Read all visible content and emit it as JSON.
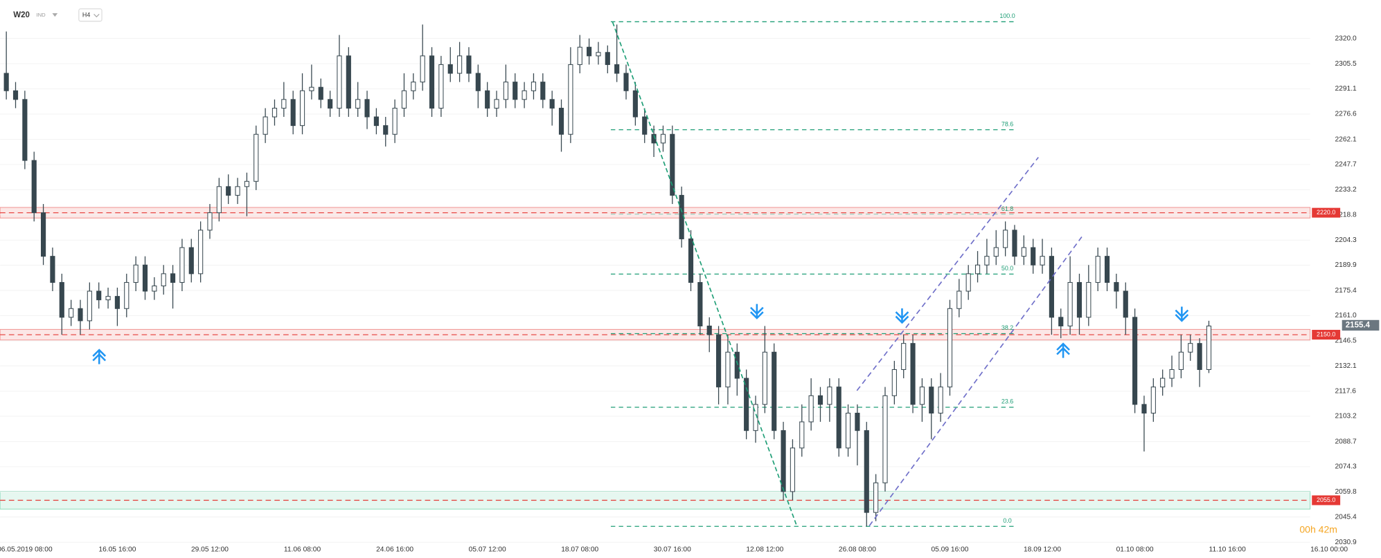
{
  "chart_data": {
    "type": "candlestick",
    "header": {
      "symbol": "W20",
      "market": "IND",
      "interval": "H4"
    },
    "timer": "00h 42m",
    "up_color": "#ffffff",
    "down_color": "#37474f",
    "categories": [
      null,
      null,
      "06.05.2019 08:00",
      null,
      null,
      null,
      null,
      null,
      null,
      null,
      null,
      null,
      "16.05 16:00",
      null,
      null,
      null,
      null,
      null,
      null,
      null,
      null,
      null,
      "29.05 12:00",
      null,
      null,
      null,
      null,
      null,
      null,
      null,
      null,
      null,
      "11.06 08:00",
      null,
      null,
      null,
      null,
      null,
      null,
      null,
      null,
      null,
      "24.06 16:00",
      null,
      null,
      null,
      null,
      null,
      null,
      null,
      null,
      null,
      "05.07 12:00",
      null,
      null,
      null,
      null,
      null,
      null,
      null,
      null,
      null,
      "18.07 08:00",
      null,
      null,
      null,
      null,
      null,
      null,
      null,
      null,
      null,
      "30.07 16:00",
      null,
      null,
      null,
      null,
      null,
      null,
      null,
      null,
      null,
      "12.08 12:00",
      null,
      null,
      null,
      null,
      null,
      null,
      null,
      null,
      null,
      "26.08 08:00",
      null,
      null,
      null,
      null,
      null,
      null,
      null,
      null,
      null,
      "05.09 16:00",
      null,
      null,
      null,
      null,
      null,
      null,
      null,
      null,
      null,
      "18.09 12:00",
      null,
      null,
      null,
      null,
      null,
      null,
      null,
      null,
      null,
      "01.10 08:00",
      null,
      null,
      null,
      null,
      null,
      null,
      null,
      null,
      null,
      "11.10 16:00",
      null,
      null,
      null,
      null,
      null,
      null,
      null,
      null,
      null,
      null,
      "16.10 00:00"
    ],
    "open": [
      2300,
      2290,
      2285,
      2250,
      2220,
      2195,
      2180,
      2160,
      2165,
      2158,
      2175,
      2170,
      2172,
      2165,
      2180,
      2190,
      2175,
      2178,
      2185,
      2180,
      2200,
      2185,
      2210,
      2220,
      2235,
      2230,
      2235,
      2238,
      2265,
      2275,
      2280,
      2285,
      2270,
      2290,
      2292,
      2285,
      2280,
      2310,
      2280,
      2285,
      2275,
      2270,
      2265,
      2280,
      2290,
      2295,
      2310,
      2280,
      2305,
      2300,
      2310,
      2300,
      2290,
      2280,
      2285,
      2295,
      2285,
      2290,
      2295,
      2285,
      2280,
      2265,
      2305,
      2315,
      2310,
      2312,
      2305,
      2300,
      2290,
      2275,
      2265,
      2260,
      2265,
      2230,
      2205,
      2180,
      2155,
      2150,
      2120,
      2140,
      2125,
      2095,
      2110,
      2140,
      2095,
      2060,
      2085,
      2100,
      2115,
      2110,
      2120,
      2085,
      2105,
      2095,
      2048,
      2065,
      2115,
      2130,
      2145,
      2110,
      2120,
      2105,
      2120,
      2165,
      2175,
      2185,
      2190,
      2195,
      2200,
      2210,
      2195,
      2200,
      2190,
      2195,
      2160,
      2155,
      2180,
      2160,
      2180,
      2195,
      2180,
      2175,
      2160,
      2110,
      2105,
      2120,
      2125,
      2130,
      2140,
      2145,
      2130,
      null,
      null,
      null,
      null,
      null,
      null,
      null,
      null,
      null,
      null,
      null,
      null,
      null
    ],
    "high": [
      2324,
      2295,
      2290,
      2255,
      2225,
      2200,
      2185,
      2170,
      2170,
      2180,
      2180,
      2177,
      2177,
      2185,
      2195,
      2195,
      2183,
      2190,
      2190,
      2205,
      2205,
      2215,
      2225,
      2240,
      2242,
      2240,
      2243,
      2270,
      2280,
      2285,
      2295,
      2290,
      2300,
      2305,
      2297,
      2290,
      2322,
      2315,
      2295,
      2290,
      2280,
      2275,
      2285,
      2300,
      2300,
      2328,
      2315,
      2310,
      2315,
      2318,
      2315,
      2305,
      2295,
      2290,
      2305,
      2300,
      2295,
      2300,
      2300,
      2290,
      2285,
      2315,
      2322,
      2320,
      2318,
      2316,
      2328,
      2305,
      2295,
      2280,
      2270,
      2270,
      2270,
      2235,
      2210,
      2185,
      2160,
      2155,
      2150,
      2145,
      2130,
      2115,
      2155,
      2145,
      2100,
      2090,
      2110,
      2125,
      2120,
      2125,
      2125,
      2110,
      2110,
      2100,
      2070,
      2120,
      2135,
      2150,
      2150,
      2125,
      2125,
      2128,
      2170,
      2182,
      2190,
      2198,
      2205,
      2210,
      2215,
      2213,
      2207,
      2205,
      2205,
      2200,
      2165,
      2195,
      2185,
      2190,
      2200,
      2200,
      2185,
      2180,
      2165,
      2115,
      2125,
      2130,
      2138,
      2150,
      2150,
      2148,
      2158,
      null,
      null,
      null,
      null,
      null,
      null,
      null,
      null,
      null,
      null,
      null,
      null,
      null
    ],
    "low": [
      2285,
      2280,
      2245,
      2215,
      2190,
      2175,
      2150,
      2155,
      2150,
      2153,
      2165,
      2165,
      2155,
      2160,
      2175,
      2170,
      2170,
      2173,
      2165,
      2175,
      2180,
      2180,
      2205,
      2215,
      2225,
      2225,
      2218,
      2233,
      2260,
      2270,
      2275,
      2265,
      2265,
      2285,
      2280,
      2275,
      2275,
      2275,
      2275,
      2268,
      2265,
      2258,
      2260,
      2275,
      2285,
      2290,
      2275,
      2275,
      2295,
      2295,
      2295,
      2280,
      2275,
      2275,
      2280,
      2280,
      2280,
      2285,
      2280,
      2270,
      2255,
      2260,
      2300,
      2305,
      2305,
      2300,
      2295,
      2285,
      2270,
      2260,
      2252,
      2255,
      2225,
      2200,
      2175,
      2150,
      2140,
      2110,
      2110,
      2115,
      2090,
      2088,
      2105,
      2090,
      2055,
      2055,
      2080,
      2095,
      2100,
      2100,
      2080,
      2080,
      2075,
      2040,
      2043,
      2060,
      2110,
      2125,
      2105,
      2100,
      2090,
      2100,
      2115,
      2160,
      2170,
      2180,
      2185,
      2190,
      2195,
      2190,
      2190,
      2185,
      2185,
      2150,
      2148,
      2150,
      2150,
      2155,
      2175,
      2175,
      2165,
      2150,
      2105,
      2083,
      2100,
      2115,
      2120,
      2125,
      2135,
      2120,
      2128,
      null,
      null,
      null,
      null,
      null,
      null,
      null,
      null,
      null,
      null,
      null,
      null,
      null
    ],
    "close": [
      2290,
      2285,
      2250,
      2220,
      2195,
      2180,
      2160,
      2165,
      2158,
      2175,
      2170,
      2172,
      2165,
      2180,
      2190,
      2175,
      2178,
      2185,
      2180,
      2200,
      2185,
      2210,
      2220,
      2235,
      2230,
      2235,
      2238,
      2265,
      2275,
      2280,
      2285,
      2270,
      2290,
      2292,
      2285,
      2280,
      2310,
      2280,
      2285,
      2275,
      2270,
      2265,
      2280,
      2290,
      2295,
      2310,
      2280,
      2305,
      2300,
      2310,
      2300,
      2290,
      2280,
      2285,
      2295,
      2285,
      2290,
      2295,
      2285,
      2280,
      2265,
      2305,
      2315,
      2310,
      2312,
      2305,
      2300,
      2290,
      2275,
      2265,
      2260,
      2265,
      2230,
      2205,
      2180,
      2155,
      2150,
      2120,
      2140,
      2125,
      2095,
      2110,
      2140,
      2095,
      2060,
      2085,
      2100,
      2115,
      2110,
      2120,
      2085,
      2105,
      2095,
      2048,
      2065,
      2115,
      2130,
      2145,
      2110,
      2120,
      2105,
      2120,
      2165,
      2175,
      2185,
      2190,
      2195,
      2200,
      2210,
      2195,
      2200,
      2190,
      2195,
      2160,
      2155,
      2180,
      2160,
      2180,
      2195,
      2180,
      2175,
      2160,
      2110,
      2105,
      2120,
      2125,
      2130,
      2140,
      2145,
      2130,
      2155,
      null,
      null,
      null,
      null,
      null,
      null,
      null,
      null,
      null,
      null,
      null,
      null,
      null
    ],
    "ylim": [
      2028,
      2337
    ],
    "yticks": [
      {
        "value": 2320.0,
        "label": "2320.0"
      },
      2305.5,
      2291.1,
      2276.6,
      2262.1,
      2247.7,
      2233.2,
      2218.8,
      2204.3,
      2189.9,
      2175.4,
      {
        "value": 2161.0,
        "label": "2161.0"
      },
      2146.5,
      2132.1,
      2117.6,
      2103.2,
      2088.7,
      2074.3,
      2059.8,
      2045.4,
      2030.9
    ],
    "levels": [
      {
        "value": 2220,
        "label": "2220.0",
        "color": "#e53935"
      },
      {
        "value": 2150,
        "label": "2150.0",
        "color": "#e53935"
      },
      {
        "value": 2055,
        "label": "2055.0",
        "color": "#e53935",
        "zone_color": "#2ebd85"
      }
    ],
    "last_price": 2155.4,
    "fib_high": 2329.6,
    "fib_low": 2040,
    "fib_color": "#1e9e76",
    "fib_levels": [
      {
        "value": 100,
        "label": "100.0"
      },
      {
        "value": 78.6,
        "label": "78.6"
      },
      {
        "value": 61.8,
        "label": "61.8"
      },
      {
        "value": 50,
        "label": "50.0"
      },
      {
        "value": 38.2,
        "label": "38.2"
      },
      {
        "value": 23.6,
        "label": "23.6"
      },
      {
        "value": 0,
        "label": "0.0"
      }
    ]
  }
}
